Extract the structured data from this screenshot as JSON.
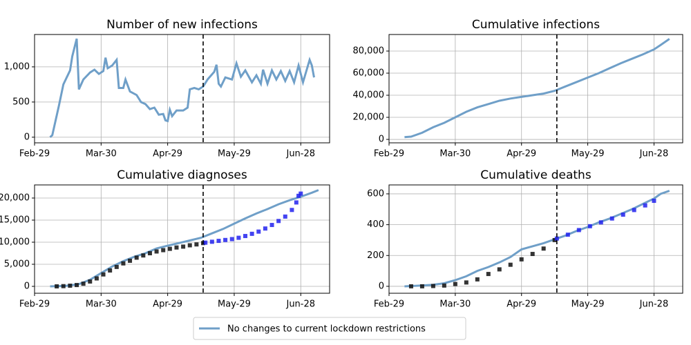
{
  "chart_data": [
    {
      "type": "line",
      "title": "Number of new infections",
      "xlim": [
        "Feb-29",
        "Jul-11"
      ],
      "xticks": [
        "Feb-29",
        "Mar-30",
        "Apr-29",
        "May-29",
        "Jun-28"
      ],
      "ylim": [
        -80,
        1460
      ],
      "yticks": [
        0,
        500,
        {
          "value": 1000,
          "label": "1,000"
        }
      ],
      "grid": true,
      "vline": "May-15",
      "legend": "lower center",
      "series": [
        {
          "name": "No changes to current lockdown restrictions",
          "color": "#6f9fc8",
          "x": [
            "Mar-07",
            "Mar-08",
            "Mar-11",
            "Mar-13",
            "Mar-16",
            "Mar-17",
            "Mar-19",
            "Mar-20",
            "Mar-22",
            "Mar-25",
            "Mar-27",
            "Mar-29",
            "Mar-31",
            "Apr-01",
            "Apr-02",
            "Apr-04",
            "Apr-06",
            "Apr-07",
            "Apr-09",
            "Apr-10",
            "Apr-12",
            "Apr-15",
            "Apr-17",
            "Apr-19",
            "Apr-21",
            "Apr-23",
            "Apr-25",
            "Apr-27",
            "Apr-28",
            "Apr-29",
            "Apr-30",
            "May-01",
            "May-03",
            "May-06",
            "May-08",
            "May-09",
            "May-11",
            "May-13",
            "May-15",
            "May-17",
            "May-20",
            "May-21",
            "May-22",
            "May-23",
            "May-25",
            "May-28",
            "May-30",
            "Jun-01",
            "Jun-03",
            "Jun-06",
            "Jun-08",
            "Jun-10",
            "Jun-11",
            "Jun-13",
            "Jun-15",
            "Jun-17",
            "Jun-19",
            "Jun-21",
            "Jun-23",
            "Jun-25",
            "Jun-27",
            "Jun-29",
            "Jul-02",
            "Jul-03",
            "Jul-04"
          ],
          "values": [
            0,
            30,
            450,
            750,
            950,
            1150,
            1400,
            680,
            820,
            920,
            960,
            900,
            940,
            1130,
            980,
            1020,
            1100,
            700,
            700,
            820,
            650,
            600,
            500,
            470,
            400,
            420,
            320,
            330,
            240,
            230,
            390,
            300,
            380,
            380,
            420,
            680,
            700,
            680,
            720,
            820,
            930,
            1030,
            760,
            720,
            850,
            820,
            1050,
            860,
            950,
            780,
            880,
            760,
            960,
            760,
            950,
            820,
            940,
            800,
            940,
            780,
            1020,
            780,
            1100,
            1020,
            850
          ]
        }
      ]
    },
    {
      "type": "line",
      "title": "Cumulative infections",
      "xlim": [
        "Feb-29",
        "Jul-11"
      ],
      "xticks": [
        "Feb-29",
        "Mar-30",
        "Apr-29",
        "May-29",
        "Jun-28"
      ],
      "ylim": [
        -3100,
        95000
      ],
      "yticks": [
        0,
        {
          "value": 20000,
          "label": "20,000"
        },
        {
          "value": 40000,
          "label": "40,000"
        },
        {
          "value": 60000,
          "label": "60,000"
        },
        {
          "value": 80000,
          "label": "80,000"
        }
      ],
      "grid": true,
      "vline": "May-15",
      "series": [
        {
          "color": "#6f9fc8",
          "x": [
            "Mar-07",
            "Mar-10",
            "Mar-15",
            "Mar-20",
            "Mar-25",
            "Mar-30",
            "Apr-04",
            "Apr-09",
            "Apr-14",
            "Apr-19",
            "Apr-24",
            "Apr-29",
            "May-04",
            "May-09",
            "May-14",
            "May-19",
            "May-24",
            "May-29",
            "Jun-03",
            "Jun-08",
            "Jun-13",
            "Jun-18",
            "Jun-23",
            "Jun-28",
            "Jul-01",
            "Jul-05"
          ],
          "values": [
            2000,
            2500,
            6000,
            11000,
            15000,
            20000,
            25000,
            29000,
            32000,
            35000,
            37000,
            38500,
            40000,
            41500,
            44000,
            48000,
            52000,
            56000,
            60000,
            64500,
            69000,
            73000,
            77000,
            81500,
            85500,
            91000
          ]
        }
      ]
    },
    {
      "type": "line",
      "title": "Cumulative diagnoses",
      "xlim": [
        "Feb-29",
        "Jul-11"
      ],
      "xticks": [
        "Feb-29",
        "Mar-30",
        "Apr-29",
        "May-29",
        "Jun-28"
      ],
      "ylim": [
        -1560,
        22970
      ],
      "yticks": [
        0,
        {
          "value": 5000,
          "label": "5,000"
        },
        {
          "value": 10000,
          "label": "10,000"
        },
        {
          "value": 15000,
          "label": "15,000"
        },
        {
          "value": 20000,
          "label": "20,000"
        }
      ],
      "grid": true,
      "vline": "May-15",
      "series": [
        {
          "color": "#6f9fc8",
          "x": [
            "Mar-07",
            "Mar-14",
            "Mar-20",
            "Mar-25",
            "Mar-30",
            "Apr-04",
            "Apr-09",
            "Apr-14",
            "Apr-19",
            "Apr-24",
            "Apr-29",
            "May-04",
            "May-09",
            "May-14",
            "May-19",
            "May-24",
            "May-29",
            "Jun-03",
            "Jun-08",
            "Jun-13",
            "Jun-18",
            "Jun-23",
            "Jun-28",
            "Jul-03",
            "Jul-06"
          ],
          "values": [
            0,
            100,
            500,
            1500,
            3000,
            4500,
            5700,
            6700,
            7500,
            8600,
            9200,
            9800,
            10400,
            11000,
            12000,
            13000,
            14200,
            15400,
            16500,
            17500,
            18600,
            19500,
            20300,
            21200,
            21800
          ]
        },
        {
          "color": "#111111",
          "marker": "square",
          "x": [
            "Mar-10",
            "Mar-13",
            "Mar-16",
            "Mar-19",
            "Mar-22",
            "Mar-25",
            "Mar-28",
            "Mar-31",
            "Apr-03",
            "Apr-06",
            "Apr-09",
            "Apr-12",
            "Apr-15",
            "Apr-18",
            "Apr-21",
            "Apr-24",
            "Apr-27",
            "Apr-30",
            "May-03",
            "May-06",
            "May-09",
            "May-12",
            "May-15"
          ],
          "values": [
            0,
            50,
            150,
            300,
            600,
            1100,
            1800,
            2700,
            3600,
            4400,
            5200,
            5800,
            6500,
            7000,
            7500,
            7900,
            8200,
            8500,
            8800,
            9000,
            9300,
            9500,
            9800
          ]
        },
        {
          "color": "#2222ee",
          "marker": "square",
          "x": [
            "May-16",
            "May-19",
            "May-22",
            "May-25",
            "May-28",
            "May-31",
            "Jun-03",
            "Jun-06",
            "Jun-09",
            "Jun-12",
            "Jun-15",
            "Jun-18",
            "Jun-21",
            "Jun-24",
            "Jun-26",
            "Jun-27",
            "Jun-28"
          ],
          "values": [
            9900,
            10100,
            10300,
            10500,
            10700,
            11000,
            11400,
            11900,
            12400,
            13100,
            13900,
            14800,
            15800,
            17300,
            19000,
            20500,
            21000
          ]
        }
      ]
    },
    {
      "type": "line",
      "title": "Cumulative deaths",
      "xlim": [
        "Feb-29",
        "Jul-11"
      ],
      "xticks": [
        "Feb-29",
        "Mar-30",
        "Apr-29",
        "May-29",
        "Jun-28"
      ],
      "ylim": [
        -45,
        658
      ],
      "yticks": [
        0,
        200,
        400,
        600
      ],
      "grid": true,
      "vline": "May-15",
      "series": [
        {
          "color": "#6f9fc8",
          "x": [
            "Mar-07",
            "Mar-15",
            "Mar-20",
            "Mar-25",
            "Mar-30",
            "Apr-04",
            "Apr-09",
            "Apr-14",
            "Apr-19",
            "Apr-24",
            "Apr-29",
            "May-04",
            "May-09",
            "May-14",
            "May-19",
            "May-24",
            "May-29",
            "Jun-03",
            "Jun-08",
            "Jun-13",
            "Jun-18",
            "Jun-23",
            "Jun-28",
            "Jul-01",
            "Jul-05"
          ],
          "values": [
            0,
            5,
            10,
            20,
            40,
            65,
            100,
            125,
            155,
            190,
            240,
            260,
            280,
            305,
            330,
            360,
            385,
            415,
            440,
            470,
            500,
            535,
            570,
            600,
            620
          ]
        },
        {
          "color": "#111111",
          "marker": "square",
          "x": [
            "Mar-10",
            "Mar-15",
            "Mar-20",
            "Mar-25",
            "Mar-30",
            "Apr-04",
            "Apr-09",
            "Apr-14",
            "Apr-19",
            "Apr-24",
            "Apr-29",
            "May-04",
            "May-09",
            "May-14"
          ],
          "values": [
            0,
            0,
            2,
            5,
            15,
            25,
            45,
            80,
            110,
            140,
            175,
            210,
            245,
            300
          ]
        },
        {
          "color": "#2222ee",
          "marker": "square",
          "x": [
            "May-15",
            "May-20",
            "May-25",
            "May-30",
            "Jun-04",
            "Jun-09",
            "Jun-14",
            "Jun-19",
            "Jun-24",
            "Jun-28"
          ],
          "values": [
            310,
            335,
            365,
            390,
            415,
            440,
            465,
            495,
            525,
            555
          ]
        }
      ]
    }
  ]
}
